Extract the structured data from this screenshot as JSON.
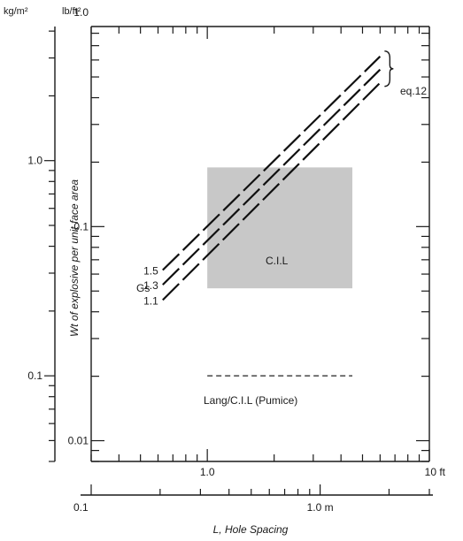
{
  "chart_data": {
    "type": "line",
    "title": "",
    "x_axis": {
      "label": "L, Hole Spacing",
      "scale": "log",
      "primary": {
        "unit": "ft",
        "range": [
          0.3,
          10
        ],
        "tick_labels": [
          "1.0",
          "10 ft"
        ]
      },
      "secondary": {
        "unit": "m",
        "range": [
          0.1,
          3.0
        ],
        "tick_labels": [
          "0.1",
          "1.0 m"
        ]
      }
    },
    "y_axis": {
      "label": "Wt of explosive per unit face area",
      "scale": "log",
      "left": {
        "unit": "kg/m²",
        "range": [
          0.04,
          4.2
        ],
        "tick_labels": [
          "0.1",
          "1.0"
        ]
      },
      "right": {
        "unit": "lb/ft²",
        "range": [
          0.008,
          0.86
        ],
        "tick_labels": [
          "0.01",
          "0.1",
          "1.0"
        ]
      }
    },
    "legend_title": "Gs",
    "series": [
      {
        "name": "1.5",
        "x_ft": [
          0.63,
          6.0
        ],
        "y_kg_m2": [
          0.31,
          3.05
        ]
      },
      {
        "name": "1.3",
        "x_ft": [
          0.63,
          6.0
        ],
        "y_kg_m2": [
          0.265,
          2.65
        ]
      },
      {
        "name": "1.1",
        "x_ft": [
          0.63,
          6.0
        ],
        "y_kg_m2": [
          0.225,
          2.3
        ]
      }
    ],
    "reference_lines": [
      {
        "label": "Lang/C.I.L (Pumice)",
        "x_ft": [
          1.0,
          4.5
        ],
        "y_kg_m2": 0.1
      }
    ],
    "regions": [
      {
        "label": "C.I.L",
        "x_ft": [
          1.0,
          4.5
        ],
        "y_kg_m2": [
          0.255,
          0.93
        ],
        "color": "#c8c8c8"
      }
    ],
    "annotations": [
      {
        "text": "eq.12"
      }
    ]
  }
}
